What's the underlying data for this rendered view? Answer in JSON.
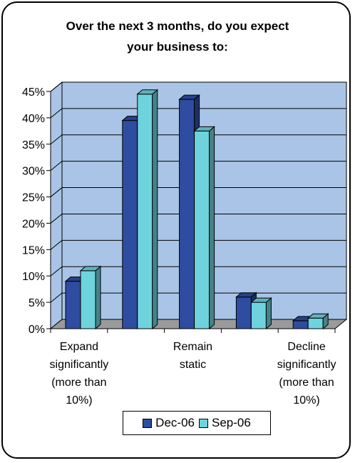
{
  "chart_data": {
    "type": "bar",
    "title_lines": [
      "Over the next 3 months, do you expect",
      "your business to:"
    ],
    "categories": [
      [
        "Expand",
        "significantly",
        "(more than",
        "10%)"
      ],
      [],
      [
        "Remain",
        "static"
      ],
      [],
      [
        "Decline",
        "significantly",
        "(more than",
        "10%)"
      ]
    ],
    "series": [
      {
        "name": "Dec-06",
        "values": [
          9,
          39.5,
          43.5,
          6,
          1.5
        ],
        "color": "#2E4DA0"
      },
      {
        "name": "Sep-06",
        "values": [
          11,
          44.5,
          37.5,
          5,
          2
        ],
        "color": "#6FD3DD"
      }
    ],
    "ylim": [
      0,
      45
    ],
    "yticks": [
      "0%",
      "5%",
      "10%",
      "15%",
      "20%",
      "25%",
      "30%",
      "35%",
      "40%",
      "45%"
    ],
    "grid": true,
    "legend_position": "bottom",
    "colors": {
      "plot_bg": "#A9C4E6",
      "floor": "#9A9A9A",
      "frame": "#000000"
    }
  }
}
